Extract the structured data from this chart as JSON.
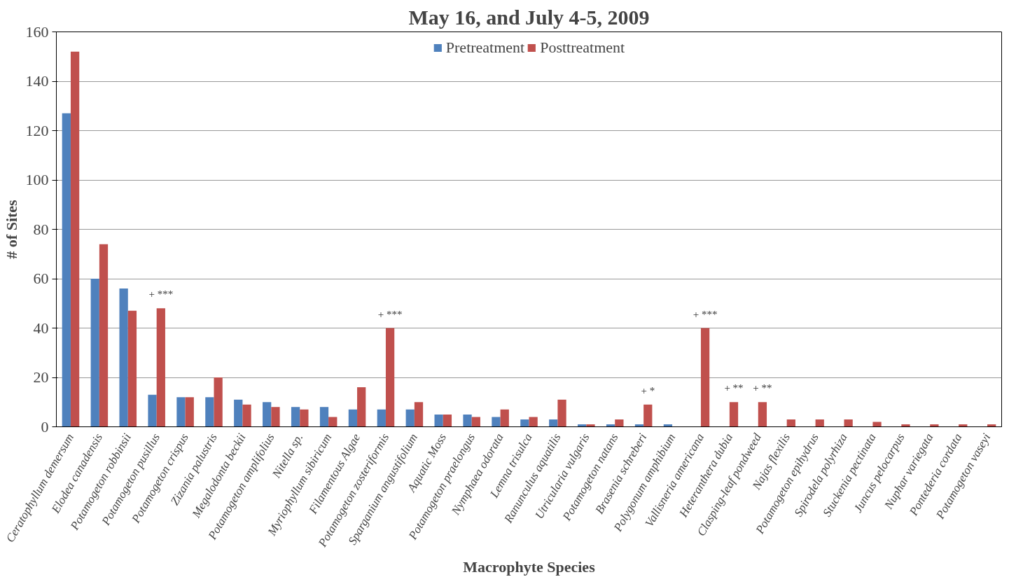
{
  "chart_data": {
    "type": "bar",
    "title": "May 16, and July 4-5, 2009",
    "xlabel": "Macrophyte Species",
    "ylabel": "# of Sites",
    "categories": [
      "Ceratophyllum demersum",
      "Elodea canadensis",
      "Potamogeton robbinsii",
      "Potamogeton pusillus",
      "Potamogeton crispus",
      "Zizania palustris",
      "Megalodonta beckii",
      "Potamogeton amplifolius",
      "Nitella sp.",
      "Myriophyllum sibiricum",
      "Filamentous Algae",
      "Potamogeton zosteriformis",
      "Sparganium angustifolium",
      "Aquatic Moss",
      "Potamogeton praelongus",
      "Nymphaea odorata",
      "Lemna trisulca",
      "Ranunculus aquatilis",
      "Utricularia vulgaris",
      "Potamogeton natans",
      "Brasenia schreberi",
      "Polygonum amphibium",
      "Vallisneria americana",
      "Heteranthera dubia",
      "Clasping-leaf pondweed",
      "Najas flexilis",
      "Potamogeton epihydrus",
      "Spirodela polyrhiza",
      "Stuckenia pectinata",
      "Juncus pelocarpus",
      "Nuphar variegata",
      "Pontederia cordata",
      "Potamogeton vaseyi"
    ],
    "series": [
      {
        "name": "Pretreatment",
        "color": "#4f81bd",
        "values": [
          127,
          60,
          56,
          13,
          12,
          12,
          11,
          10,
          8,
          8,
          7,
          7,
          7,
          5,
          5,
          4,
          3,
          3,
          1,
          1,
          1,
          1,
          null,
          null,
          null,
          null,
          null,
          null,
          null,
          null,
          null,
          null,
          null
        ]
      },
      {
        "name": "Posttreatment",
        "color": "#c0504d",
        "values": [
          152,
          74,
          47,
          48,
          12,
          20,
          9,
          8,
          7,
          4,
          16,
          40,
          10,
          5,
          4,
          7,
          4,
          11,
          1,
          3,
          9,
          null,
          40,
          10,
          10,
          3,
          3,
          3,
          2,
          1,
          1,
          1,
          1
        ]
      }
    ],
    "ylim": [
      0,
      160
    ],
    "yticks": [
      0,
      20,
      40,
      60,
      80,
      100,
      120,
      140,
      160
    ],
    "grid": "y",
    "legend": "top",
    "annotations": [
      {
        "text": "+ ***",
        "x": "Potamogeton pusillus",
        "y": 48
      },
      {
        "text": "+ ***",
        "x": "Potamogeton zosteriformis",
        "y": 40
      },
      {
        "text": "+ *",
        "x": "Brasenia schreberi",
        "y": 9
      },
      {
        "text": "+ ***",
        "x": "Vallisneria americana",
        "y": 40
      },
      {
        "text": "+ **",
        "x": "Heteranthera dubia",
        "y": 10
      },
      {
        "text": "+ **",
        "x": "Clasping-leaf pondweed",
        "y": 10
      }
    ]
  }
}
